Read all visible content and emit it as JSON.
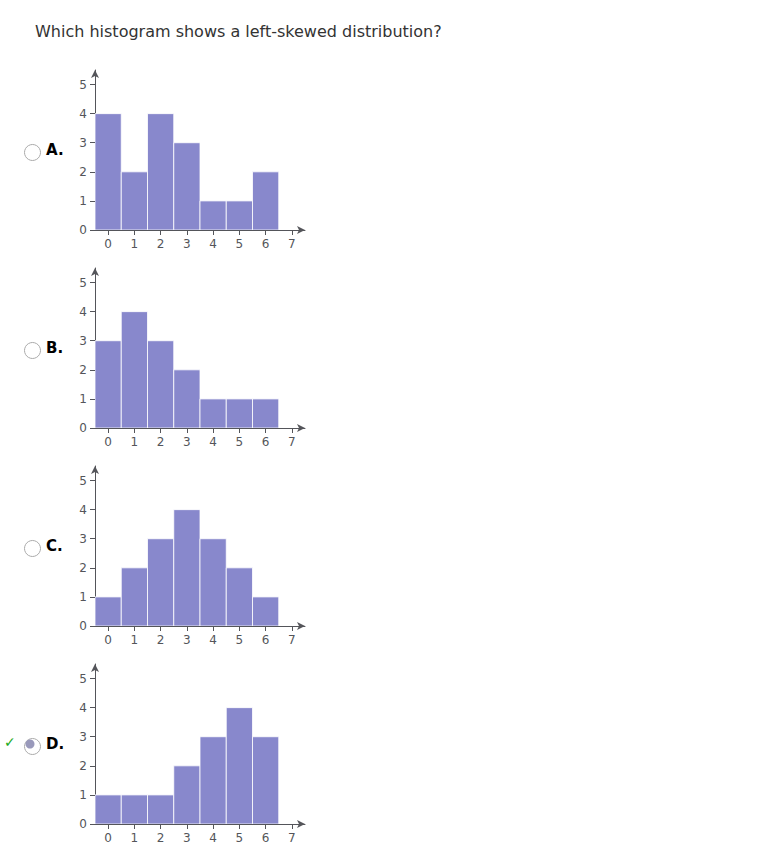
{
  "title": "Which histogram shows a left-skewed distribution?",
  "chart_data": [
    {
      "type": "bar",
      "title": "A.",
      "x": [
        0,
        1,
        2,
        3,
        4,
        5,
        6
      ],
      "values": [
        4,
        2,
        4,
        3,
        1,
        1,
        2
      ],
      "color": "#8888cc",
      "xlim": [
        -0.5,
        7.5
      ],
      "xticks": [
        0,
        1,
        2,
        3,
        4,
        5,
        6,
        7
      ],
      "ylim": [
        0,
        5.5
      ],
      "yticks": [
        0,
        1,
        2,
        3,
        4,
        5
      ],
      "grid": false
    },
    {
      "type": "bar",
      "title": "B.",
      "x": [
        0,
        1,
        2,
        3,
        4,
        5,
        6
      ],
      "values": [
        3,
        4,
        3,
        2,
        1,
        1,
        1
      ],
      "color": "#8888cc",
      "xlim": [
        -0.5,
        7.5
      ],
      "xticks": [
        0,
        1,
        2,
        3,
        4,
        5,
        6,
        7
      ],
      "ylim": [
        0,
        5.5
      ],
      "yticks": [
        0,
        1,
        2,
        3,
        4,
        5
      ],
      "grid": false
    },
    {
      "type": "bar",
      "title": "C.",
      "x": [
        0,
        1,
        2,
        3,
        4,
        5,
        6
      ],
      "values": [
        1,
        2,
        3,
        4,
        3,
        2,
        1
      ],
      "color": "#8888cc",
      "xlim": [
        -0.5,
        7.5
      ],
      "xticks": [
        0,
        1,
        2,
        3,
        4,
        5,
        6,
        7
      ],
      "ylim": [
        0,
        5.5
      ],
      "yticks": [
        0,
        1,
        2,
        3,
        4,
        5
      ],
      "grid": false
    },
    {
      "type": "bar",
      "title": "D.",
      "x": [
        0,
        1,
        2,
        3,
        4,
        5,
        6
      ],
      "values": [
        1,
        1,
        1,
        2,
        3,
        4,
        3
      ],
      "color": "#8888cc",
      "xlim": [
        -0.5,
        7.5
      ],
      "xticks": [
        0,
        1,
        2,
        3,
        4,
        5,
        6,
        7
      ],
      "ylim": [
        0,
        5.5
      ],
      "yticks": [
        0,
        1,
        2,
        3,
        4,
        5
      ],
      "grid": false,
      "annotations": [
        {
          "text": "✓",
          "color": "#22aa22"
        }
      ]
    }
  ]
}
